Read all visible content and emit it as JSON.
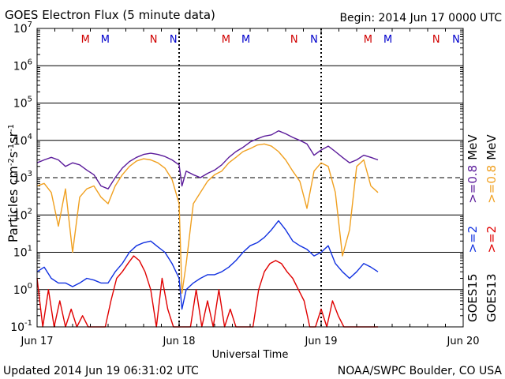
{
  "chart_data": {
    "type": "line",
    "title": "GOES Electron Flux (5 minute data)",
    "begin_label": "Begin: 2014 Jun 17 0000 UTC",
    "xlabel": "Universal Time",
    "ylabel_main": "Particles cm",
    "ylabel_sup1": "-2",
    "ylabel_mid1": "s",
    "ylabel_sup2": "-1",
    "ylabel_mid2": "sr",
    "ylabel_sup3": "-1",
    "x_ticks": [
      "Jun 17",
      "Jun 18",
      "Jun 19",
      "Jun 20"
    ],
    "x_range_days": [
      0,
      3
    ],
    "y_scale": "log",
    "y_range": [
      0.1,
      10000000
    ],
    "y_ticks": [
      {
        "base": "10",
        "exp": "-1"
      },
      {
        "base": "10",
        "exp": "0"
      },
      {
        "base": "10",
        "exp": "1"
      },
      {
        "base": "10",
        "exp": "2"
      },
      {
        "base": "10",
        "exp": "3"
      },
      {
        "base": "10",
        "exp": "4"
      },
      {
        "base": "10",
        "exp": "5"
      },
      {
        "base": "10",
        "exp": "6"
      },
      {
        "base": "10",
        "exp": "7"
      }
    ],
    "threshold_line": 1000,
    "markers": [
      {
        "day": 0.34,
        "label": "M",
        "color": "#d00000"
      },
      {
        "day": 0.48,
        "label": "M",
        "color": "#0000cc"
      },
      {
        "day": 0.82,
        "label": "N",
        "color": "#d00000"
      },
      {
        "day": 0.96,
        "label": "N",
        "color": "#0000cc"
      },
      {
        "day": 1.33,
        "label": "M",
        "color": "#d00000"
      },
      {
        "day": 1.47,
        "label": "M",
        "color": "#0000cc"
      },
      {
        "day": 1.81,
        "label": "N",
        "color": "#d00000"
      },
      {
        "day": 1.95,
        "label": "N",
        "color": "#0000cc"
      },
      {
        "day": 2.33,
        "label": "M",
        "color": "#d00000"
      },
      {
        "day": 2.47,
        "label": "M",
        "color": "#0000cc"
      },
      {
        "day": 2.81,
        "label": "N",
        "color": "#d00000"
      },
      {
        "day": 2.95,
        "label": "N",
        "color": "#0000cc"
      }
    ],
    "series": [
      {
        "name": "GOES15 >=0.8 MeV",
        "color": "#5a1a9a",
        "x": [
          0.0,
          0.05,
          0.1,
          0.15,
          0.2,
          0.25,
          0.3,
          0.35,
          0.4,
          0.45,
          0.5,
          0.55,
          0.6,
          0.65,
          0.7,
          0.75,
          0.8,
          0.85,
          0.9,
          0.95,
          1.0,
          1.02,
          1.05,
          1.1,
          1.15,
          1.2,
          1.25,
          1.3,
          1.35,
          1.4,
          1.45,
          1.5,
          1.55,
          1.6,
          1.65,
          1.7,
          1.75,
          1.8,
          1.85,
          1.9,
          1.95,
          2.0,
          2.05,
          2.1,
          2.15,
          2.2,
          2.25,
          2.3,
          2.35,
          2.4
        ],
        "y": [
          2500,
          3000,
          3500,
          3000,
          2000,
          2500,
          2200,
          1600,
          1200,
          600,
          500,
          1000,
          1800,
          2700,
          3500,
          4200,
          4500,
          4200,
          3700,
          3000,
          2200,
          600,
          1500,
          1200,
          1000,
          1300,
          1600,
          2200,
          3500,
          5000,
          6500,
          9000,
          11000,
          13000,
          14000,
          18000,
          15000,
          12000,
          10000,
          8000,
          4000,
          5500,
          7000,
          5000,
          3500,
          2500,
          3000,
          4000,
          3500,
          3000
        ]
      },
      {
        "name": "GOES13 >=0.8 MeV",
        "color": "#f0a020",
        "x": [
          0.0,
          0.05,
          0.1,
          0.15,
          0.2,
          0.25,
          0.3,
          0.35,
          0.4,
          0.45,
          0.5,
          0.55,
          0.6,
          0.65,
          0.7,
          0.75,
          0.8,
          0.85,
          0.9,
          0.95,
          1.0,
          1.02,
          1.05,
          1.1,
          1.15,
          1.2,
          1.25,
          1.3,
          1.35,
          1.4,
          1.45,
          1.5,
          1.55,
          1.6,
          1.65,
          1.7,
          1.75,
          1.8,
          1.85,
          1.9,
          1.95,
          2.0,
          2.05,
          2.1,
          2.15,
          2.2,
          2.25,
          2.3,
          2.35,
          2.4
        ],
        "y": [
          600,
          700,
          400,
          50,
          500,
          10,
          300,
          500,
          600,
          300,
          200,
          600,
          1200,
          2000,
          2800,
          3200,
          3000,
          2500,
          1800,
          900,
          200,
          0.8,
          5,
          200,
          400,
          800,
          1200,
          1500,
          2500,
          3500,
          5000,
          6000,
          7500,
          8000,
          7000,
          5000,
          3000,
          1500,
          800,
          150,
          1500,
          2500,
          2000,
          400,
          8,
          40,
          2000,
          3000,
          600,
          400
        ]
      },
      {
        "name": "GOES15 >=2 MeV",
        "color": "#1030e0",
        "x": [
          0.0,
          0.05,
          0.1,
          0.15,
          0.2,
          0.25,
          0.3,
          0.35,
          0.4,
          0.45,
          0.5,
          0.55,
          0.6,
          0.65,
          0.7,
          0.75,
          0.8,
          0.85,
          0.9,
          0.95,
          1.0,
          1.02,
          1.05,
          1.1,
          1.15,
          1.2,
          1.25,
          1.3,
          1.35,
          1.4,
          1.45,
          1.5,
          1.55,
          1.6,
          1.65,
          1.7,
          1.75,
          1.8,
          1.85,
          1.9,
          1.95,
          2.0,
          2.05,
          2.1,
          2.15,
          2.2,
          2.25,
          2.3,
          2.35,
          2.4
        ],
        "y": [
          3,
          4,
          2,
          1.5,
          1.5,
          1.2,
          1.5,
          2,
          1.8,
          1.5,
          1.5,
          3,
          5,
          10,
          15,
          18,
          20,
          14,
          10,
          5,
          2,
          0.3,
          1,
          1.5,
          2,
          2.5,
          2.5,
          3,
          4,
          6,
          10,
          15,
          18,
          25,
          40,
          70,
          40,
          20,
          15,
          12,
          8,
          10,
          15,
          5,
          3,
          2,
          3,
          5,
          4,
          3
        ]
      },
      {
        "name": "GOES13 >=2 MeV",
        "color": "#e00000",
        "x": [
          0.0,
          0.04,
          0.08,
          0.12,
          0.16,
          0.2,
          0.24,
          0.28,
          0.32,
          0.36,
          0.4,
          0.44,
          0.48,
          0.52,
          0.56,
          0.6,
          0.64,
          0.68,
          0.72,
          0.76,
          0.8,
          0.84,
          0.88,
          0.92,
          0.96,
          1.0,
          1.04,
          1.08,
          1.12,
          1.16,
          1.2,
          1.24,
          1.28,
          1.32,
          1.36,
          1.4,
          1.44,
          1.48,
          1.52,
          1.56,
          1.6,
          1.64,
          1.68,
          1.72,
          1.76,
          1.8,
          1.84,
          1.88,
          1.92,
          1.96,
          2.0,
          2.04,
          2.08,
          2.12,
          2.16,
          2.2,
          2.24,
          2.28,
          2.32,
          2.36,
          2.4
        ],
        "y": [
          2,
          0.1,
          1,
          0.1,
          0.5,
          0.1,
          0.3,
          0.1,
          0.2,
          0.1,
          0.1,
          0.1,
          0.1,
          0.5,
          2,
          3,
          5,
          8,
          6,
          3,
          1,
          0.1,
          2,
          0.3,
          0.1,
          0.1,
          0.1,
          0.1,
          1,
          0.1,
          0.5,
          0.1,
          1,
          0.1,
          0.3,
          0.1,
          0.1,
          0.1,
          0.1,
          1,
          3,
          5,
          6,
          5,
          3,
          2,
          1,
          0.5,
          0.1,
          0.1,
          0.3,
          0.1,
          0.5,
          0.2,
          0.1,
          0.1,
          0.1,
          0.1,
          0.1,
          0.1,
          0.1
        ]
      }
    ],
    "legend_right": [
      {
        "sat": "GOES15",
        "items": [
          {
            "text": ">=2",
            "color": "#1030e0"
          },
          {
            "text": ">=0.8",
            "color": "#5a1a9a"
          },
          {
            "text": "MeV",
            "color": "#000000"
          }
        ]
      },
      {
        "sat": "GOES13",
        "items": [
          {
            "text": ">=2",
            "color": "#e00000"
          },
          {
            "text": ">=0.8",
            "color": "#f0a020"
          },
          {
            "text": "MeV",
            "color": "#000000"
          }
        ]
      }
    ]
  },
  "footer": {
    "updated": "Updated 2014 Jun 19 06:31:02 UTC",
    "source": "NOAA/SWPC Boulder, CO USA"
  }
}
